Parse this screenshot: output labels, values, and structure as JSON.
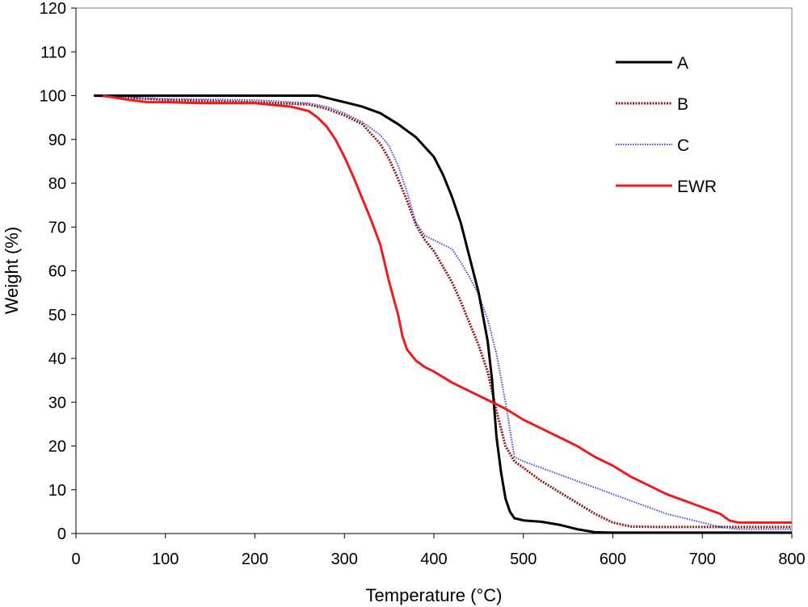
{
  "chart_data": {
    "type": "line",
    "title": "",
    "xlabel": "Temperature (°C)",
    "ylabel": "Weight (%)",
    "xlim": [
      0,
      800
    ],
    "ylim": [
      0,
      120
    ],
    "x_ticks": [
      0,
      100,
      200,
      300,
      400,
      500,
      600,
      700,
      800
    ],
    "y_ticks": [
      0,
      10,
      20,
      30,
      40,
      50,
      60,
      70,
      80,
      90,
      100,
      110,
      120
    ],
    "grid": false,
    "legend": "top-right",
    "series": [
      {
        "name": "A",
        "color": "#000000",
        "style": "solid",
        "points": [
          [
            20,
            100
          ],
          [
            100,
            100
          ],
          [
            200,
            100
          ],
          [
            270,
            100
          ],
          [
            280,
            99.5
          ],
          [
            300,
            98.5
          ],
          [
            320,
            97.5
          ],
          [
            340,
            96
          ],
          [
            360,
            93.5
          ],
          [
            380,
            90.5
          ],
          [
            400,
            86
          ],
          [
            410,
            82
          ],
          [
            420,
            77
          ],
          [
            430,
            71
          ],
          [
            440,
            63
          ],
          [
            450,
            55
          ],
          [
            460,
            44
          ],
          [
            465,
            35
          ],
          [
            470,
            22
          ],
          [
            475,
            14
          ],
          [
            480,
            8
          ],
          [
            485,
            5
          ],
          [
            490,
            3.5
          ],
          [
            500,
            3
          ],
          [
            520,
            2.7
          ],
          [
            540,
            2
          ],
          [
            560,
            1
          ],
          [
            580,
            0.3
          ],
          [
            600,
            0.2
          ],
          [
            800,
            0.2
          ]
        ]
      },
      {
        "name": "B",
        "color": "#8b1a1a",
        "style": "dotted-thick",
        "points": [
          [
            20,
            100
          ],
          [
            100,
            99
          ],
          [
            200,
            98.5
          ],
          [
            260,
            98
          ],
          [
            280,
            97
          ],
          [
            300,
            95.5
          ],
          [
            320,
            93.5
          ],
          [
            340,
            89
          ],
          [
            350,
            85.5
          ],
          [
            360,
            81
          ],
          [
            370,
            76
          ],
          [
            380,
            70.5
          ],
          [
            390,
            67
          ],
          [
            400,
            64.5
          ],
          [
            410,
            61
          ],
          [
            420,
            57.5
          ],
          [
            430,
            53
          ],
          [
            440,
            48
          ],
          [
            450,
            43
          ],
          [
            460,
            37
          ],
          [
            470,
            28
          ],
          [
            480,
            20
          ],
          [
            490,
            16.5
          ],
          [
            500,
            15
          ],
          [
            520,
            12
          ],
          [
            540,
            9.5
          ],
          [
            560,
            7
          ],
          [
            580,
            4.5
          ],
          [
            600,
            2.5
          ],
          [
            620,
            1.6
          ],
          [
            650,
            1.5
          ],
          [
            800,
            1.5
          ]
        ]
      },
      {
        "name": "C",
        "color": "#4a4ad8",
        "style": "dotted",
        "points": [
          [
            20,
            100
          ],
          [
            100,
            99.3
          ],
          [
            200,
            99
          ],
          [
            260,
            98.3
          ],
          [
            280,
            97.5
          ],
          [
            300,
            96
          ],
          [
            320,
            94
          ],
          [
            340,
            91
          ],
          [
            350,
            88.5
          ],
          [
            360,
            84
          ],
          [
            370,
            78
          ],
          [
            380,
            71
          ],
          [
            390,
            68
          ],
          [
            400,
            67
          ],
          [
            410,
            66
          ],
          [
            420,
            65
          ],
          [
            430,
            62
          ],
          [
            440,
            58.5
          ],
          [
            450,
            54.5
          ],
          [
            460,
            49
          ],
          [
            470,
            41
          ],
          [
            480,
            30
          ],
          [
            490,
            17.5
          ],
          [
            500,
            16.5
          ],
          [
            520,
            15
          ],
          [
            540,
            13.5
          ],
          [
            560,
            12
          ],
          [
            580,
            10.5
          ],
          [
            600,
            9
          ],
          [
            620,
            7.5
          ],
          [
            640,
            6
          ],
          [
            660,
            4.5
          ],
          [
            680,
            3.5
          ],
          [
            700,
            2.5
          ],
          [
            720,
            1.5
          ],
          [
            740,
            1
          ],
          [
            800,
            1
          ]
        ]
      },
      {
        "name": "EWR",
        "color": "#ee1c1c",
        "style": "solid",
        "points": [
          [
            30,
            100
          ],
          [
            60,
            99
          ],
          [
            80,
            98.5
          ],
          [
            100,
            98.5
          ],
          [
            140,
            98.3
          ],
          [
            200,
            98.3
          ],
          [
            240,
            97.5
          ],
          [
            260,
            96.5
          ],
          [
            270,
            95
          ],
          [
            280,
            93
          ],
          [
            290,
            90
          ],
          [
            300,
            86
          ],
          [
            310,
            81.5
          ],
          [
            320,
            76.5
          ],
          [
            330,
            71.5
          ],
          [
            340,
            66
          ],
          [
            350,
            57.5
          ],
          [
            360,
            50
          ],
          [
            365,
            45
          ],
          [
            370,
            42
          ],
          [
            380,
            39.5
          ],
          [
            390,
            38
          ],
          [
            400,
            37
          ],
          [
            420,
            34.5
          ],
          [
            440,
            32.5
          ],
          [
            460,
            30.5
          ],
          [
            480,
            28.5
          ],
          [
            500,
            26
          ],
          [
            520,
            24
          ],
          [
            540,
            22
          ],
          [
            560,
            20
          ],
          [
            580,
            17.5
          ],
          [
            600,
            15.5
          ],
          [
            620,
            13
          ],
          [
            640,
            11
          ],
          [
            660,
            9
          ],
          [
            680,
            7.5
          ],
          [
            700,
            6
          ],
          [
            720,
            4.5
          ],
          [
            730,
            3
          ],
          [
            740,
            2.5
          ],
          [
            750,
            2.5
          ],
          [
            800,
            2.5
          ]
        ]
      }
    ]
  }
}
